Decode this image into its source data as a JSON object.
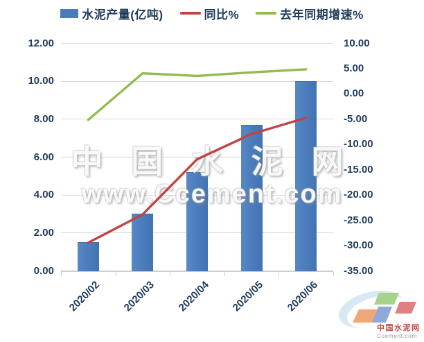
{
  "chart_data": {
    "type": "bar-line-combo",
    "title": "",
    "categories": [
      "2020/02",
      "2020/03",
      "2020/04",
      "2020/05",
      "2020/06"
    ],
    "series": [
      {
        "name": "水泥产量(亿吨)",
        "type": "bar",
        "axis": "left",
        "color": "#4A7CBC",
        "values": [
          1.5,
          3.0,
          5.2,
          7.7,
          10.0
        ]
      },
      {
        "name": "同比%",
        "type": "line",
        "axis": "right",
        "color": "#BF4443",
        "values": [
          -29.5,
          -23.9,
          -13.0,
          -8.0,
          -4.8
        ]
      },
      {
        "name": "去年同期增速%",
        "type": "line",
        "axis": "right",
        "color": "#93BC50",
        "values": [
          -5.2,
          4.0,
          3.5,
          4.2,
          4.8
        ]
      }
    ],
    "left_axis": {
      "labels": [
        "12.00",
        "10.00",
        "8.00",
        "6.00",
        "4.00",
        "2.00",
        "0.00"
      ],
      "values": [
        12,
        10,
        8,
        6,
        4,
        2,
        0
      ],
      "min": 0,
      "max": 12
    },
    "right_axis": {
      "labels": [
        "10.00",
        "5.00",
        "0.00",
        "-5.00",
        "-10.00",
        "-15.00",
        "-20.00",
        "-25.00",
        "-30.00",
        "-35.00"
      ],
      "values": [
        10,
        5,
        0,
        -5,
        -10,
        -15,
        -20,
        -25,
        -30,
        -35
      ],
      "min": -35,
      "max": 10
    },
    "grid": true,
    "legend_position": "top"
  },
  "watermark": {
    "line1": "中 国 水 泥 网",
    "line2": "www.Ccement.com"
  },
  "logo": {
    "name_cn": "中国水泥网",
    "name_en": "Ccement.com"
  },
  "colors": {
    "axis_text": "#1F3A5C",
    "gridline": "#D9D9D9"
  }
}
